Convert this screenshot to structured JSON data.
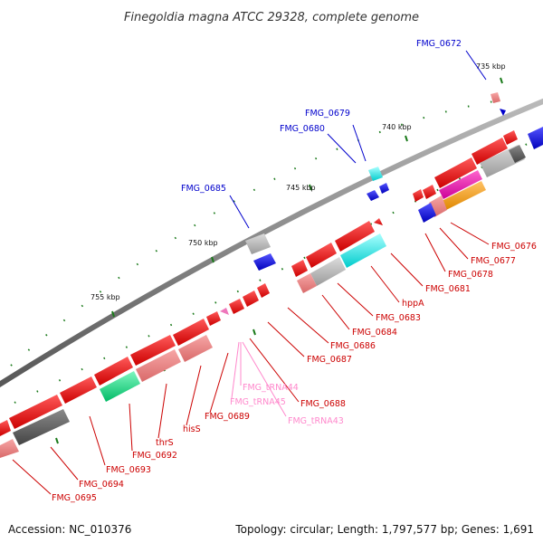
{
  "title": "Finegoldia magna ATCC 29328, complete genome",
  "footer": {
    "accession": "Accession: NC_010376",
    "stats": "Topology: circular; Length: 1,797,577 bp; Genes: 1,691"
  },
  "colors": {
    "backbone": "#777777",
    "forward_label": "#0000cc",
    "reverse_label": "#cc0000",
    "trna_label": "#ff88cc",
    "tick": "#1a7a1a"
  },
  "scale": {
    "ticks": [
      {
        "label": "735 kbp"
      },
      {
        "label": "740 kbp"
      },
      {
        "label": "745 kbp"
      },
      {
        "label": "750 kbp"
      },
      {
        "label": "755 kbp"
      }
    ]
  },
  "genes": {
    "forward": [
      {
        "label": "FMG_0672"
      },
      {
        "label": "FMG_0679"
      },
      {
        "label": "FMG_0680"
      },
      {
        "label": "FMG_0685"
      }
    ],
    "reverse": [
      {
        "label": "FMG_0676"
      },
      {
        "label": "FMG_0677"
      },
      {
        "label": "FMG_0678"
      },
      {
        "label": "FMG_0681"
      },
      {
        "label": "hppA"
      },
      {
        "label": "FMG_0683"
      },
      {
        "label": "FMG_0684"
      },
      {
        "label": "FMG_0686"
      },
      {
        "label": "FMG_0687"
      },
      {
        "label": "FMG_0688"
      },
      {
        "label": "FMG_0689"
      },
      {
        "label": "hisS"
      },
      {
        "label": "thrS"
      },
      {
        "label": "FMG_0692"
      },
      {
        "label": "FMG_0693"
      },
      {
        "label": "FMG_0694"
      },
      {
        "label": "FMG_0695"
      }
    ],
    "trna": [
      {
        "label": "FMG_tRNA44"
      },
      {
        "label": "FMG_tRNA45"
      },
      {
        "label": "FMG_tRNA43"
      }
    ]
  }
}
